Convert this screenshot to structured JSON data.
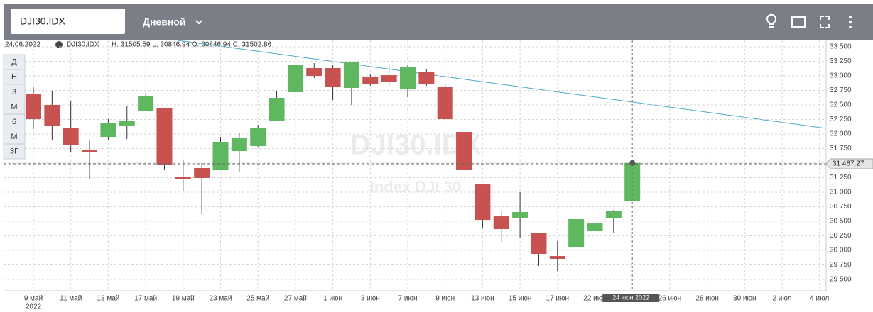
{
  "toolbar": {
    "symbol_input": "DJI30.IDX",
    "interval": "Дневной"
  },
  "legend": {
    "date": "24.06.2022",
    "symbol": "DJI30.IDX",
    "ohlc": "H: 31505.59 L: 30846.94 O: 30846.94 C: 31502.86"
  },
  "range_buttons": [
    "Д",
    "Н",
    "3 М",
    "6 М",
    "3Г"
  ],
  "chart_data": {
    "type": "candlestick",
    "watermark": "DJI30.IDX",
    "watermark_subtitle": "Index DJI 30",
    "categories": [
      "9 май",
      null,
      "11 май",
      null,
      "13 май",
      null,
      "17 май",
      null,
      "19 май",
      null,
      "23 май",
      null,
      "25 май",
      null,
      "27 май",
      null,
      "1 июн",
      null,
      "3 июн",
      null,
      "7 июн",
      null,
      "9 июн",
      null,
      "13 июн",
      null,
      "15 июн",
      null,
      "17 июн",
      null,
      "22 июн",
      null,
      "24 июн  2022",
      null,
      "26 июн",
      null,
      "28 июн",
      null,
      "30 июн",
      null,
      "2 июл",
      null,
      "4 июл"
    ],
    "year_label": "2022",
    "open": [
      32683,
      32500,
      32110,
      31732,
      31951,
      32134,
      32402,
      32451,
      31268,
      31415,
      31378,
      31707,
      31793,
      32232,
      32720,
      33134,
      33134,
      32793,
      32976,
      33012,
      32768,
      33073,
      32817,
      32037,
      31134,
      30585,
      30561,
      30293,
      29902,
      30061,
      30329,
      30561,
      30846.94,
      null,
      null,
      null,
      null,
      null,
      null,
      null,
      null,
      null,
      null
    ],
    "high": [
      32817,
      32744,
      32573,
      31890,
      32256,
      32476,
      32683,
      32451,
      31549,
      31500,
      31951,
      32012,
      32159,
      32744,
      33195,
      33220,
      33183,
      33232,
      33037,
      33183,
      33183,
      33122,
      32866,
      32037,
      31134,
      30683,
      31000,
      30293,
      30159,
      30537,
      30756,
      30695,
      31505.59,
      null,
      null,
      null,
      null,
      null,
      null,
      null,
      null,
      null,
      null
    ],
    "low": [
      32085,
      31890,
      31695,
      31232,
      31902,
      31915,
      32390,
      31378,
      31012,
      30622,
      31378,
      31354,
      31768,
      32232,
      32720,
      32963,
      32585,
      32500,
      32829,
      32829,
      32634,
      32829,
      32256,
      31378,
      30378,
      30146,
      30207,
      29732,
      29646,
      30061,
      30146,
      30293,
      30846.94,
      null,
      null,
      null,
      null,
      null,
      null,
      null,
      null,
      null,
      null
    ],
    "close": [
      32256,
      32146,
      31817,
      31683,
      32183,
      32220,
      32646,
      31476,
      31232,
      31244,
      31866,
      31939,
      32110,
      32622,
      33195,
      33000,
      32805,
      33232,
      32866,
      32902,
      33146,
      32866,
      32256,
      31378,
      30524,
      30366,
      30659,
      29939,
      29854,
      30537,
      30463,
      30683,
      31502.86,
      null,
      null,
      null,
      null,
      null,
      null,
      null,
      null,
      null,
      null
    ],
    "up_color": "#5fb760",
    "down_color": "#c8524f",
    "ylim": [
      29305,
      33610
    ],
    "yticks": [
      {
        "value": 29500,
        "label": "29 500"
      },
      {
        "value": 29750,
        "label": "29 750"
      },
      {
        "value": 30000,
        "label": "30 000"
      },
      {
        "value": 30250,
        "label": "30 250"
      },
      {
        "value": 30500,
        "label": "30 500"
      },
      {
        "value": 30750,
        "label": "30 750"
      },
      {
        "value": 31000,
        "label": "31 000"
      },
      {
        "value": 31250,
        "label": "31 250"
      },
      {
        "value": 31500,
        "label": "31 500"
      },
      {
        "value": 31750,
        "label": "31 750"
      },
      {
        "value": 32000,
        "label": "32 000"
      },
      {
        "value": 32250,
        "label": "32 250"
      },
      {
        "value": 32500,
        "label": "32 500"
      },
      {
        "value": 32750,
        "label": "32 750"
      },
      {
        "value": 33000,
        "label": "33 000"
      },
      {
        "value": 33250,
        "label": "33 250"
      },
      {
        "value": 33500,
        "label": "33 500"
      }
    ],
    "last_price": {
      "value": 31487.27,
      "label": "31 487.27"
    },
    "grid": true
  }
}
